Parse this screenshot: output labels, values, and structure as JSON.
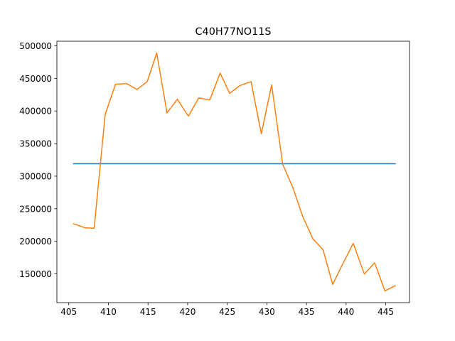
{
  "chart_data": {
    "type": "line",
    "title": "C40H77NO11S",
    "xlabel": "",
    "ylabel": "",
    "xlim": [
      403.5,
      448.0
    ],
    "ylim": [
      106000,
      507000
    ],
    "xticks": [
      405,
      410,
      415,
      420,
      425,
      430,
      435,
      440,
      445
    ],
    "yticks": [
      150000,
      200000,
      250000,
      300000,
      350000,
      400000,
      450000,
      500000
    ],
    "grid": false,
    "legend": "none",
    "series": [
      {
        "color": "#1f77b4",
        "x": [
          405.6,
          446.2
        ],
        "y": [
          319000,
          319000
        ]
      },
      {
        "color": "#ff7f0e",
        "x": [
          405.6,
          407.0,
          408.2,
          409.6,
          410.9,
          412.3,
          413.6,
          414.9,
          416.1,
          417.4,
          418.7,
          420.1,
          421.4,
          422.8,
          424.1,
          425.3,
          426.6,
          428.0,
          429.3,
          430.6,
          432.0,
          433.3,
          434.5,
          435.8,
          437.1,
          438.3,
          439.6,
          440.9,
          442.3,
          443.6,
          444.9,
          446.2
        ],
        "y": [
          227000,
          221000,
          220000,
          395000,
          441000,
          442000,
          433000,
          445000,
          489000,
          397000,
          418000,
          392000,
          420000,
          417000,
          458000,
          427000,
          439000,
          445000,
          365000,
          440000,
          318000,
          282000,
          239000,
          204000,
          187000,
          134000,
          166000,
          197000,
          150000,
          167000,
          124000,
          132000
        ]
      }
    ]
  }
}
